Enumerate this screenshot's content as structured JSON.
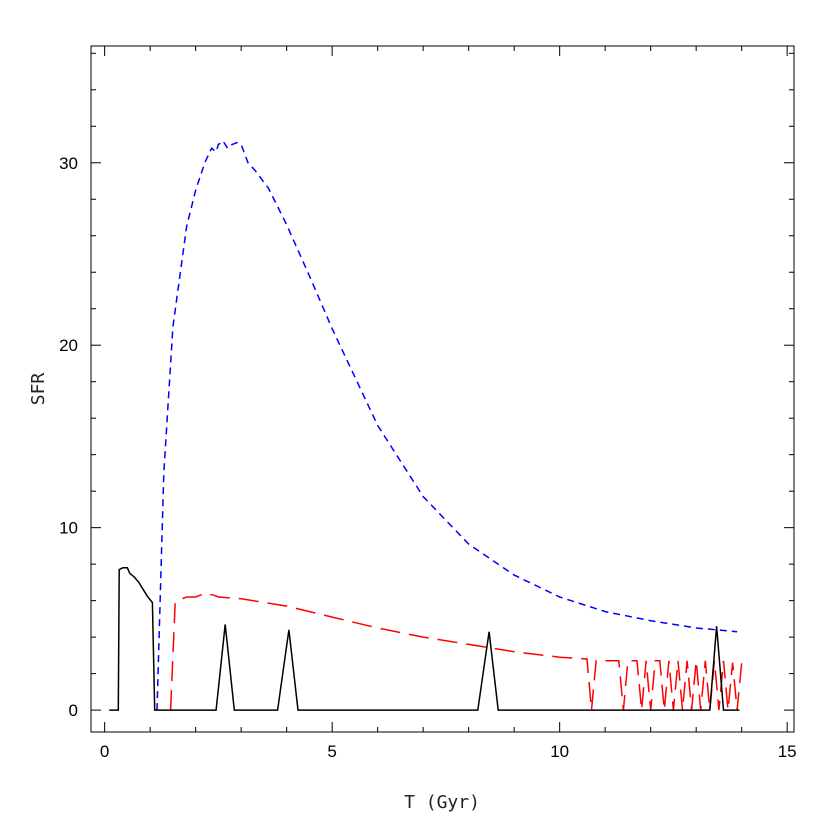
{
  "chart_data": {
    "type": "line",
    "title": "",
    "xlabel": "T (Gyr)",
    "ylabel": "SFR",
    "xlim": [
      -0.3,
      15.15
    ],
    "ylim": [
      -1.2,
      36.4
    ],
    "xticks": [
      0,
      5,
      10,
      15
    ],
    "xtick_labels": [
      "0",
      "5",
      "10",
      "15"
    ],
    "yticks": [
      0,
      10,
      20,
      30
    ],
    "ytick_labels": [
      "0",
      "10",
      "20",
      "30"
    ],
    "x_minor_step": 1,
    "y_minor_step": 2,
    "grid": false,
    "legend": "none",
    "series": [
      {
        "style": "short-dash",
        "color": "#0000ff",
        "x": [
          1.15,
          1.3,
          1.5,
          1.8,
          2.0,
          2.2,
          2.35,
          2.45,
          2.5,
          2.6,
          2.7,
          2.8,
          2.9,
          3.0,
          3.15,
          3.3,
          3.6,
          4.0,
          4.5,
          5.0,
          6.0,
          7.0,
          8.0,
          9.0,
          10.0,
          11.0,
          12.0,
          13.0,
          13.9
        ],
        "y": [
          0.0,
          13.0,
          21.0,
          26.5,
          28.5,
          30.0,
          30.8,
          30.6,
          31.0,
          31.2,
          30.8,
          31.0,
          31.1,
          31.0,
          30.0,
          29.6,
          28.6,
          26.6,
          23.8,
          20.9,
          15.6,
          11.7,
          9.1,
          7.4,
          6.2,
          5.4,
          4.9,
          4.5,
          4.3
        ]
      },
      {
        "style": "long-dash",
        "color": "#ff0000",
        "x": [
          1.45,
          1.55,
          1.6,
          1.8,
          2.0,
          2.2,
          2.4,
          2.5,
          3.0,
          4.0,
          5.0,
          6.0,
          7.0,
          8.0,
          9.0,
          10.0,
          10.6,
          10.7,
          10.8,
          10.95,
          11.3,
          11.4,
          11.5,
          11.7,
          11.8,
          11.9,
          12.0,
          12.1,
          12.2,
          12.3,
          12.4,
          12.5,
          12.6,
          12.7,
          12.8,
          12.9,
          13.0,
          13.1,
          13.2,
          13.3,
          13.4,
          13.5,
          13.6,
          13.7,
          13.8,
          13.9,
          14.0
        ],
        "y": [
          0.0,
          5.9,
          6.0,
          6.2,
          6.2,
          6.4,
          6.3,
          6.2,
          6.1,
          5.7,
          5.1,
          4.5,
          4.0,
          3.6,
          3.2,
          2.9,
          2.8,
          0.0,
          2.7,
          2.7,
          2.7,
          0.0,
          2.7,
          2.7,
          0.0,
          2.7,
          0.0,
          2.7,
          2.7,
          0.0,
          2.7,
          0.0,
          2.7,
          0.0,
          2.7,
          0.0,
          2.7,
          0.0,
          2.7,
          0.0,
          2.7,
          0.0,
          2.7,
          0.0,
          2.6,
          0.0,
          2.6
        ]
      },
      {
        "style": "solid",
        "color": "#000000",
        "x": [
          0.1,
          0.3,
          0.32,
          0.4,
          0.5,
          0.55,
          0.65,
          0.75,
          0.85,
          0.95,
          1.05,
          1.1,
          2.45,
          2.65,
          2.85,
          3.8,
          4.05,
          4.25,
          8.2,
          8.45,
          8.65,
          13.3,
          13.45,
          13.6,
          13.95
        ],
        "y": [
          0.0,
          0.0,
          7.7,
          7.8,
          7.8,
          7.5,
          7.3,
          7.0,
          6.6,
          6.2,
          5.9,
          0.0,
          0.0,
          4.7,
          0.0,
          0.0,
          4.4,
          0.0,
          0.0,
          4.3,
          0.0,
          0.0,
          4.6,
          0.0,
          0.0
        ]
      }
    ]
  }
}
